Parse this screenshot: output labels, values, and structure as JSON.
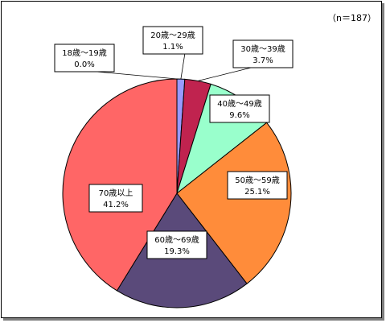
{
  "chart_data": {
    "type": "pie",
    "note": "（n＝187）",
    "start_angle_deg": 0,
    "direction": "clockwise",
    "grid": false,
    "legend": "none",
    "slices": [
      {
        "label": "18歳～19歳",
        "value": 0.0,
        "value_text": "0.0%",
        "color": "#C0C0FF"
      },
      {
        "label": "20歳～29歳",
        "value": 1.1,
        "value_text": "1.1%",
        "color": "#9999FF"
      },
      {
        "label": "30歳～39歳",
        "value": 3.7,
        "value_text": "3.7%",
        "color": "#C0234F"
      },
      {
        "label": "40歳～49歳",
        "value": 9.6,
        "value_text": "9.6%",
        "color": "#99FFCC"
      },
      {
        "label": "50歳～59歳",
        "value": 25.1,
        "value_text": "25.1%",
        "color": "#FF8C3A"
      },
      {
        "label": "60歳～69歳",
        "value": 19.3,
        "value_text": "19.3%",
        "color": "#5A4A7A"
      },
      {
        "label": "70歳以上",
        "value": 41.2,
        "value_text": "41.2%",
        "color": "#FF6666"
      }
    ]
  }
}
